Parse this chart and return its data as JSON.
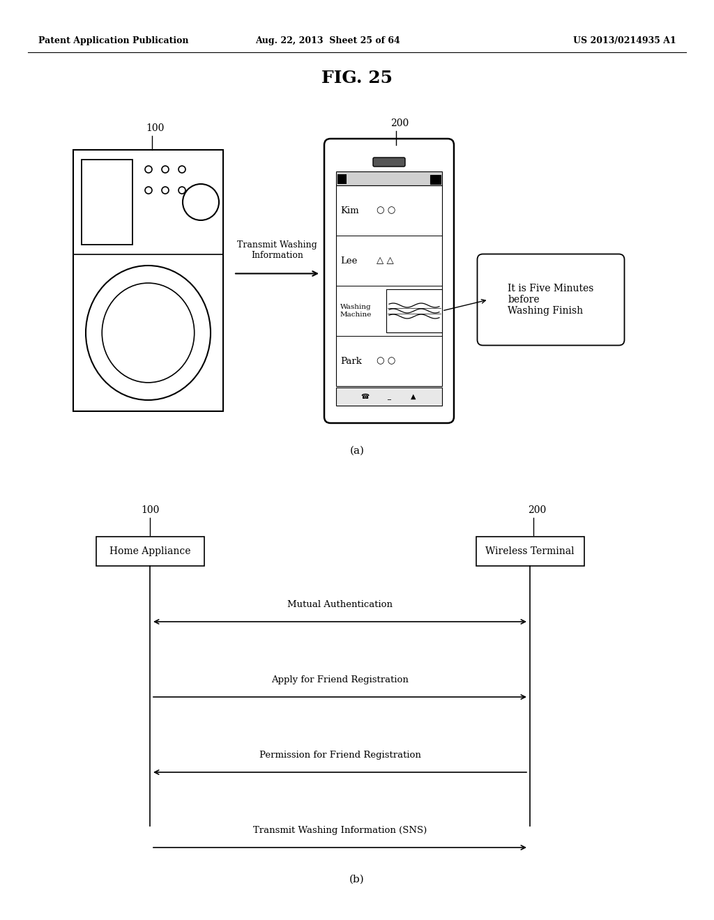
{
  "bg_color": "#ffffff",
  "header_left": "Patent Application Publication",
  "header_mid": "Aug. 22, 2013  Sheet 25 of 64",
  "header_right": "US 2013/0214935 A1",
  "fig_title": "FIG. 25",
  "label_100_a": "100",
  "label_200_a": "200",
  "transmit_label": "Transmit Washing\nInformation",
  "bubble_text": "It is Five Minutes\nbefore\nWashing Finish",
  "part_a_label": "(a)",
  "part_b_label": "(b)",
  "label_100_b": "100",
  "label_200_b": "200",
  "box_left_text": "Home Appliance",
  "box_right_text": "Wireless Terminal",
  "seq_messages": [
    {
      "label": "Mutual Authentication",
      "direction": "both"
    },
    {
      "label": "Apply for Friend Registration",
      "direction": "right"
    },
    {
      "label": "Permission for Friend Registration",
      "direction": "left"
    },
    {
      "label": "Transmit Washing Information (SNS)",
      "direction": "right"
    }
  ]
}
